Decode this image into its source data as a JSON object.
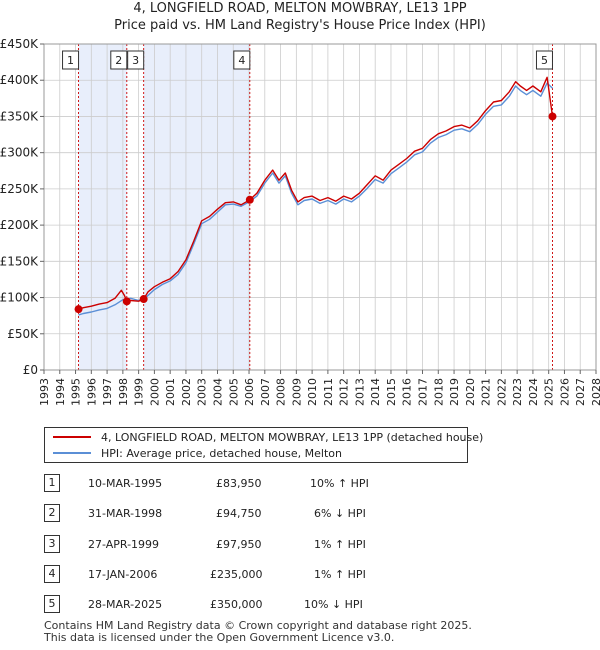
{
  "title_line1": "4, LONGFIELD ROAD, MELTON MOWBRAY, LE13 1PP",
  "title_line2": "Price paid vs. HM Land Registry's House Price Index (HPI)",
  "colors": {
    "price_paid": "#cc0000",
    "hpi": "#5b8fd6",
    "shade": "#e8eefb",
    "grid": "#cccccc"
  },
  "legend": {
    "price_paid_label": "4, LONGFIELD ROAD, MELTON MOWBRAY, LE13 1PP (detached house)",
    "hpi_label": "HPI: Average price, detached house, Melton"
  },
  "sales": [
    {
      "num": "1",
      "date": "10-MAR-1995",
      "price": "£83,950",
      "hpi_diff": "10% ↑ HPI",
      "year": 1995.19,
      "value": 83950
    },
    {
      "num": "2",
      "date": "31-MAR-1998",
      "price": "£94,750",
      "hpi_diff": "6% ↓ HPI",
      "year": 1998.25,
      "value": 94750
    },
    {
      "num": "3",
      "date": "27-APR-1999",
      "price": "£97,950",
      "hpi_diff": "1% ↑ HPI",
      "year": 1999.32,
      "value": 97950
    },
    {
      "num": "4",
      "date": "17-JAN-2006",
      "price": "£235,000",
      "hpi_diff": "1% ↑ HPI",
      "year": 2006.05,
      "value": 235000
    },
    {
      "num": "5",
      "date": "28-MAR-2025",
      "price": "£350,000",
      "hpi_diff": "10% ↓ HPI",
      "year": 2025.24,
      "value": 350000
    }
  ],
  "footer_line1": "Contains HM Land Registry data © Crown copyright and database right 2025.",
  "footer_line2": "This data is licensed under the Open Government Licence v3.0.",
  "chart_data": {
    "type": "line",
    "title": "Price paid vs. HM Land Registry's House Price Index (HPI)",
    "xlim": [
      1993,
      2028
    ],
    "ylim": [
      0,
      450000
    ],
    "x_ticks": [
      1993,
      1994,
      1995,
      1996,
      1997,
      1998,
      1999,
      2000,
      2001,
      2002,
      2003,
      2004,
      2005,
      2006,
      2007,
      2008,
      2009,
      2010,
      2011,
      2012,
      2013,
      2014,
      2015,
      2016,
      2017,
      2018,
      2019,
      2020,
      2021,
      2022,
      2023,
      2024,
      2025,
      2026,
      2027,
      2028
    ],
    "y_ticks": [
      {
        "value": 0,
        "label": "£0"
      },
      {
        "value": 50000,
        "label": "£50K"
      },
      {
        "value": 100000,
        "label": "£100K"
      },
      {
        "value": 150000,
        "label": "£150K"
      },
      {
        "value": 200000,
        "label": "£200K"
      },
      {
        "value": 250000,
        "label": "£250K"
      },
      {
        "value": 300000,
        "label": "£300K"
      },
      {
        "value": 350000,
        "label": "£350K"
      },
      {
        "value": 400000,
        "label": "£400K"
      },
      {
        "value": 450000,
        "label": "£450K"
      }
    ],
    "shaded_ranges": [
      [
        1995.19,
        1998.25
      ],
      [
        1999.32,
        2006.05
      ]
    ],
    "series": [
      {
        "name": "4, LONGFIELD ROAD, MELTON MOWBRAY, LE13 1PP (detached house)",
        "x": [
          1995.19,
          1995.5,
          1996,
          1996.5,
          1997,
          1997.5,
          1997.9,
          1998.1,
          1998.25,
          1998.5,
          1999,
          1999.32,
          1999.6,
          2000,
          2000.5,
          2001,
          2001.5,
          2002,
          2002.5,
          2003,
          2003.5,
          2004,
          2004.5,
          2005,
          2005.5,
          2006.05,
          2006.5,
          2007,
          2007.5,
          2007.9,
          2008.3,
          2008.7,
          2009.1,
          2009.5,
          2010,
          2010.5,
          2011,
          2011.5,
          2012,
          2012.5,
          2013,
          2013.5,
          2014,
          2014.5,
          2015,
          2015.5,
          2016,
          2016.5,
          2017,
          2017.5,
          2018,
          2018.5,
          2019,
          2019.5,
          2020,
          2020.5,
          2021,
          2021.5,
          2022,
          2022.5,
          2022.9,
          2023.2,
          2023.6,
          2024,
          2024.5,
          2024.9,
          2025.24
        ],
        "values": [
          83950,
          86000,
          88000,
          91000,
          93000,
          99000,
          110000,
          103000,
          94750,
          96000,
          95000,
          97950,
          108000,
          115000,
          121000,
          126000,
          136000,
          152000,
          178000,
          206000,
          212000,
          222000,
          231000,
          232000,
          228000,
          235000,
          244000,
          262000,
          276000,
          262000,
          272000,
          248000,
          232000,
          238000,
          240000,
          234000,
          238000,
          233000,
          240000,
          236000,
          244000,
          256000,
          268000,
          262000,
          276000,
          284000,
          292000,
          302000,
          306000,
          318000,
          326000,
          330000,
          336000,
          338000,
          334000,
          344000,
          358000,
          370000,
          372000,
          384000,
          398000,
          392000,
          386000,
          392000,
          384000,
          404000,
          350000
        ]
      },
      {
        "name": "HPI: Average price, detached house, Melton",
        "x": [
          1995.19,
          1995.5,
          1996,
          1996.5,
          1997,
          1997.5,
          1998,
          1998.5,
          1999,
          1999.5,
          2000,
          2000.5,
          2001,
          2001.5,
          2002,
          2002.5,
          2003,
          2003.5,
          2004,
          2004.5,
          2005,
          2005.5,
          2006,
          2006.5,
          2007,
          2007.5,
          2007.9,
          2008.3,
          2008.7,
          2009.1,
          2009.5,
          2010,
          2010.5,
          2011,
          2011.5,
          2012,
          2012.5,
          2013,
          2013.5,
          2014,
          2014.5,
          2015,
          2015.5,
          2016,
          2016.5,
          2017,
          2017.5,
          2018,
          2018.5,
          2019,
          2019.5,
          2020,
          2020.5,
          2021,
          2021.5,
          2022,
          2022.5,
          2022.9,
          2023.2,
          2023.6,
          2024,
          2024.5,
          2024.9,
          2025.24
        ],
        "values": [
          76000,
          78000,
          80000,
          83000,
          85000,
          90000,
          97000,
          99000,
          96000,
          101000,
          111000,
          118000,
          123000,
          132000,
          148000,
          174000,
          202000,
          208000,
          218000,
          228000,
          229000,
          226000,
          232000,
          240000,
          258000,
          272000,
          258000,
          268000,
          244000,
          228000,
          234000,
          236000,
          230000,
          234000,
          229000,
          236000,
          232000,
          240000,
          251000,
          263000,
          258000,
          271000,
          279000,
          287000,
          297000,
          301000,
          313000,
          321000,
          325000,
          331000,
          333000,
          329000,
          339000,
          353000,
          364000,
          366000,
          378000,
          392000,
          386000,
          380000,
          386000,
          378000,
          396000,
          389000
        ]
      }
    ]
  }
}
